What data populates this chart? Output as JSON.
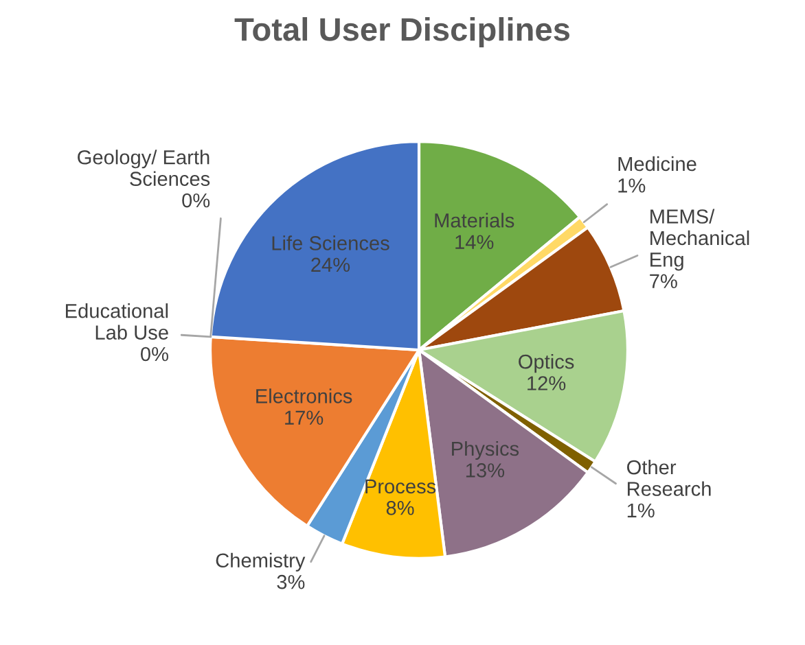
{
  "chart_data": {
    "type": "pie",
    "title": "Total User Disciplines",
    "categories": [
      "Materials",
      "Medicine",
      "MEMS/\nMechanical\nEng",
      "Optics",
      "Other\nResearch",
      "Physics",
      "Process",
      "Chemistry",
      "Electronics",
      "Educational\nLab Use",
      "Geology/ Earth\nSciences",
      "Life Sciences"
    ],
    "values": [
      14,
      1,
      7,
      12,
      1,
      13,
      8,
      3,
      17,
      0,
      0,
      24
    ],
    "value_labels": [
      "14%",
      "1%",
      "7%",
      "12%",
      "1%",
      "13%",
      "8%",
      "3%",
      "17%",
      "0%",
      "0%",
      "24%"
    ],
    "colors": [
      "#70ad47",
      "#ffd966",
      "#9e480e",
      "#a9d18e",
      "#7f6000",
      "#8e7188",
      "#ffc000",
      "#5b9bd5",
      "#ed7d31",
      "#264478",
      "#43682b",
      "#4472c4"
    ]
  }
}
